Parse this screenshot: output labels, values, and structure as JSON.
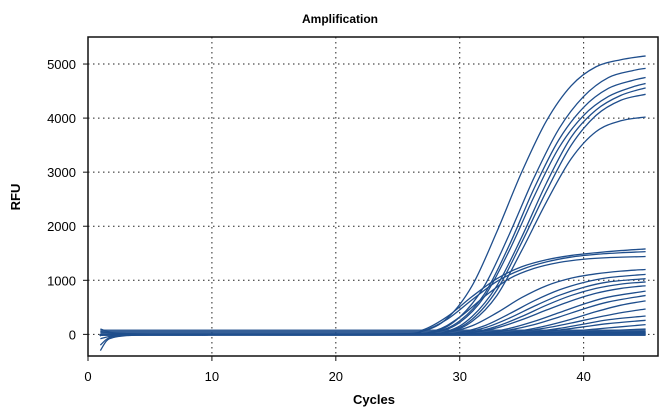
{
  "chart_data": {
    "type": "line",
    "title": "Amplification",
    "xlabel": "Cycles",
    "ylabel": "RFU",
    "xlim": [
      0,
      46
    ],
    "ylim": [
      -400,
      5500
    ],
    "x_ticks": [
      0,
      10,
      20,
      30,
      40
    ],
    "y_ticks": [
      0,
      1000,
      2000,
      3000,
      4000,
      5000
    ],
    "grid": true,
    "legend": "none",
    "line_color": "#1f4e8c",
    "x_start": 1,
    "x_end": 45,
    "series": [
      {
        "values": [
          [
            1,
            -20
          ],
          [
            2,
            -5
          ],
          [
            10,
            0
          ],
          [
            24,
            5
          ],
          [
            27,
            60
          ],
          [
            29,
            300
          ],
          [
            31,
            900
          ],
          [
            33,
            1900
          ],
          [
            35,
            3000
          ],
          [
            37,
            3950
          ],
          [
            39,
            4600
          ],
          [
            41,
            4950
          ],
          [
            43,
            5080
          ],
          [
            45,
            5150
          ]
        ]
      },
      {
        "values": [
          [
            1,
            -20
          ],
          [
            2,
            -5
          ],
          [
            10,
            0
          ],
          [
            25,
            5
          ],
          [
            28,
            60
          ],
          [
            30,
            320
          ],
          [
            32,
            900
          ],
          [
            34,
            1850
          ],
          [
            36,
            2900
          ],
          [
            38,
            3800
          ],
          [
            40,
            4400
          ],
          [
            42,
            4750
          ],
          [
            44,
            4880
          ],
          [
            45,
            4920
          ]
        ]
      },
      {
        "values": [
          [
            1,
            -20
          ],
          [
            2,
            -5
          ],
          [
            10,
            0
          ],
          [
            25,
            5
          ],
          [
            28,
            50
          ],
          [
            30,
            250
          ],
          [
            32,
            750
          ],
          [
            34,
            1650
          ],
          [
            36,
            2700
          ],
          [
            38,
            3600
          ],
          [
            40,
            4200
          ],
          [
            42,
            4550
          ],
          [
            44,
            4700
          ],
          [
            45,
            4750
          ]
        ]
      },
      {
        "values": [
          [
            1,
            -20
          ],
          [
            2,
            -5
          ],
          [
            10,
            0
          ],
          [
            25,
            5
          ],
          [
            28,
            40
          ],
          [
            30,
            220
          ],
          [
            32,
            700
          ],
          [
            34,
            1550
          ],
          [
            36,
            2550
          ],
          [
            38,
            3450
          ],
          [
            40,
            4050
          ],
          [
            42,
            4400
          ],
          [
            44,
            4580
          ],
          [
            45,
            4640
          ]
        ]
      },
      {
        "values": [
          [
            1,
            -20
          ],
          [
            2,
            -5
          ],
          [
            10,
            0
          ],
          [
            26,
            5
          ],
          [
            29,
            60
          ],
          [
            31,
            330
          ],
          [
            33,
            900
          ],
          [
            35,
            1800
          ],
          [
            37,
            2800
          ],
          [
            39,
            3650
          ],
          [
            41,
            4150
          ],
          [
            43,
            4420
          ],
          [
            45,
            4560
          ]
        ]
      },
      {
        "values": [
          [
            1,
            -20
          ],
          [
            2,
            -5
          ],
          [
            10,
            0
          ],
          [
            26,
            5
          ],
          [
            29,
            50
          ],
          [
            31,
            280
          ],
          [
            33,
            820
          ],
          [
            35,
            1700
          ],
          [
            37,
            2650
          ],
          [
            39,
            3500
          ],
          [
            41,
            4050
          ],
          [
            43,
            4330
          ],
          [
            45,
            4440
          ]
        ]
      },
      {
        "values": [
          [
            1,
            -20
          ],
          [
            2,
            -5
          ],
          [
            10,
            0
          ],
          [
            26,
            5
          ],
          [
            29,
            40
          ],
          [
            31,
            240
          ],
          [
            33,
            720
          ],
          [
            35,
            1550
          ],
          [
            37,
            2450
          ],
          [
            39,
            3250
          ],
          [
            41,
            3750
          ],
          [
            43,
            3950
          ],
          [
            45,
            4020
          ]
        ]
      },
      {
        "values": [
          [
            1,
            -20
          ],
          [
            2,
            -5
          ],
          [
            10,
            0
          ],
          [
            25,
            5
          ],
          [
            27,
            80
          ],
          [
            29,
            330
          ],
          [
            31,
            700
          ],
          [
            33,
            1030
          ],
          [
            35,
            1250
          ],
          [
            37,
            1380
          ],
          [
            39,
            1460
          ],
          [
            41,
            1510
          ],
          [
            43,
            1550
          ],
          [
            45,
            1580
          ]
        ]
      },
      {
        "values": [
          [
            1,
            -20
          ],
          [
            2,
            -5
          ],
          [
            10,
            0
          ],
          [
            25,
            5
          ],
          [
            27,
            60
          ],
          [
            29,
            280
          ],
          [
            31,
            640
          ],
          [
            33,
            980
          ],
          [
            35,
            1200
          ],
          [
            37,
            1340
          ],
          [
            39,
            1430
          ],
          [
            41,
            1480
          ],
          [
            43,
            1510
          ],
          [
            45,
            1530
          ]
        ]
      },
      {
        "values": [
          [
            1,
            -20
          ],
          [
            2,
            -5
          ],
          [
            10,
            0
          ],
          [
            25,
            5
          ],
          [
            28,
            70
          ],
          [
            30,
            320
          ],
          [
            32,
            700
          ],
          [
            34,
            1030
          ],
          [
            36,
            1220
          ],
          [
            38,
            1330
          ],
          [
            40,
            1390
          ],
          [
            42,
            1420
          ],
          [
            45,
            1440
          ]
        ]
      },
      {
        "values": [
          [
            1,
            -20
          ],
          [
            2,
            -5
          ],
          [
            10,
            0
          ],
          [
            26,
            5
          ],
          [
            29,
            40
          ],
          [
            31,
            160
          ],
          [
            33,
            400
          ],
          [
            35,
            680
          ],
          [
            37,
            900
          ],
          [
            39,
            1040
          ],
          [
            41,
            1120
          ],
          [
            43,
            1170
          ],
          [
            45,
            1200
          ]
        ]
      },
      {
        "values": [
          [
            1,
            -20
          ],
          [
            2,
            -5
          ],
          [
            10,
            0
          ],
          [
            27,
            5
          ],
          [
            30,
            40
          ],
          [
            32,
            160
          ],
          [
            34,
            380
          ],
          [
            36,
            620
          ],
          [
            38,
            820
          ],
          [
            40,
            960
          ],
          [
            42,
            1050
          ],
          [
            45,
            1110
          ]
        ]
      },
      {
        "values": [
          [
            1,
            -20
          ],
          [
            2,
            -5
          ],
          [
            10,
            0
          ],
          [
            27,
            5
          ],
          [
            30,
            30
          ],
          [
            32,
            120
          ],
          [
            34,
            300
          ],
          [
            36,
            520
          ],
          [
            38,
            720
          ],
          [
            40,
            870
          ],
          [
            42,
            970
          ],
          [
            45,
            1030
          ]
        ]
      },
      {
        "values": [
          [
            1,
            -20
          ],
          [
            2,
            -5
          ],
          [
            10,
            0
          ],
          [
            28,
            5
          ],
          [
            31,
            40
          ],
          [
            33,
            150
          ],
          [
            35,
            330
          ],
          [
            37,
            540
          ],
          [
            39,
            720
          ],
          [
            41,
            850
          ],
          [
            43,
            930
          ],
          [
            45,
            970
          ]
        ]
      },
      {
        "values": [
          [
            1,
            -20
          ],
          [
            2,
            -5
          ],
          [
            10,
            0
          ],
          [
            28,
            5
          ],
          [
            31,
            30
          ],
          [
            33,
            120
          ],
          [
            35,
            270
          ],
          [
            37,
            450
          ],
          [
            39,
            620
          ],
          [
            41,
            760
          ],
          [
            43,
            850
          ],
          [
            45,
            900
          ]
        ]
      },
      {
        "values": [
          [
            1,
            -20
          ],
          [
            2,
            -5
          ],
          [
            10,
            0
          ],
          [
            29,
            5
          ],
          [
            32,
            30
          ],
          [
            34,
            110
          ],
          [
            36,
            240
          ],
          [
            38,
            400
          ],
          [
            40,
            560
          ],
          [
            42,
            690
          ],
          [
            45,
            800
          ]
        ]
      },
      {
        "values": [
          [
            1,
            -20
          ],
          [
            2,
            -5
          ],
          [
            10,
            0
          ],
          [
            29,
            5
          ],
          [
            32,
            20
          ],
          [
            34,
            80
          ],
          [
            36,
            180
          ],
          [
            38,
            320
          ],
          [
            40,
            470
          ],
          [
            42,
            600
          ],
          [
            45,
            720
          ]
        ]
      },
      {
        "values": [
          [
            1,
            -20
          ],
          [
            2,
            -5
          ],
          [
            10,
            0
          ],
          [
            30,
            5
          ],
          [
            33,
            20
          ],
          [
            35,
            70
          ],
          [
            37,
            160
          ],
          [
            39,
            280
          ],
          [
            41,
            420
          ],
          [
            43,
            540
          ],
          [
            45,
            620
          ]
        ]
      },
      {
        "values": [
          [
            1,
            -20
          ],
          [
            2,
            -5
          ],
          [
            10,
            0
          ],
          [
            30,
            5
          ],
          [
            33,
            15
          ],
          [
            35,
            55
          ],
          [
            37,
            120
          ],
          [
            39,
            210
          ],
          [
            41,
            310
          ],
          [
            43,
            400
          ],
          [
            45,
            470
          ]
        ]
      },
      {
        "values": [
          [
            1,
            -20
          ],
          [
            2,
            -5
          ],
          [
            10,
            0
          ],
          [
            31,
            5
          ],
          [
            34,
            15
          ],
          [
            36,
            50
          ],
          [
            38,
            110
          ],
          [
            40,
            190
          ],
          [
            42,
            270
          ],
          [
            45,
            340
          ]
        ]
      },
      {
        "values": [
          [
            1,
            -20
          ],
          [
            2,
            -5
          ],
          [
            10,
            0
          ],
          [
            31,
            5
          ],
          [
            34,
            10
          ],
          [
            36,
            35
          ],
          [
            38,
            80
          ],
          [
            40,
            140
          ],
          [
            42,
            200
          ],
          [
            45,
            260
          ]
        ]
      },
      {
        "values": [
          [
            1,
            -20
          ],
          [
            2,
            -5
          ],
          [
            10,
            0
          ],
          [
            32,
            5
          ],
          [
            35,
            10
          ],
          [
            37,
            30
          ],
          [
            39,
            60
          ],
          [
            41,
            100
          ],
          [
            43,
            140
          ],
          [
            45,
            180
          ]
        ]
      },
      {
        "values": [
          [
            1,
            -20
          ],
          [
            2,
            -5
          ],
          [
            10,
            0
          ],
          [
            33,
            5
          ],
          [
            36,
            10
          ],
          [
            38,
            25
          ],
          [
            40,
            45
          ],
          [
            42,
            70
          ],
          [
            45,
            100
          ]
        ]
      },
      {
        "values": [
          [
            1,
            -300
          ],
          [
            1.5,
            -120
          ],
          [
            2,
            -60
          ],
          [
            3,
            -25
          ],
          [
            5,
            -8
          ],
          [
            10,
            0
          ],
          [
            30,
            5
          ],
          [
            45,
            50
          ]
        ]
      },
      {
        "values": [
          [
            1,
            -200
          ],
          [
            1.5,
            -90
          ],
          [
            2,
            -40
          ],
          [
            3,
            -15
          ],
          [
            5,
            -5
          ],
          [
            10,
            0
          ],
          [
            30,
            3
          ],
          [
            45,
            30
          ]
        ]
      },
      {
        "values": [
          [
            1,
            100
          ],
          [
            1.5,
            60
          ],
          [
            2,
            30
          ],
          [
            3,
            15
          ],
          [
            5,
            5
          ],
          [
            10,
            0
          ],
          [
            30,
            10
          ],
          [
            45,
            20
          ]
        ]
      },
      {
        "values": [
          [
            1,
            50
          ],
          [
            2,
            20
          ],
          [
            4,
            5
          ],
          [
            10,
            0
          ],
          [
            45,
            0
          ]
        ]
      },
      {
        "values": [
          [
            1,
            -80
          ],
          [
            2,
            -30
          ],
          [
            4,
            -5
          ],
          [
            10,
            0
          ],
          [
            45,
            -5
          ]
        ]
      }
    ]
  }
}
